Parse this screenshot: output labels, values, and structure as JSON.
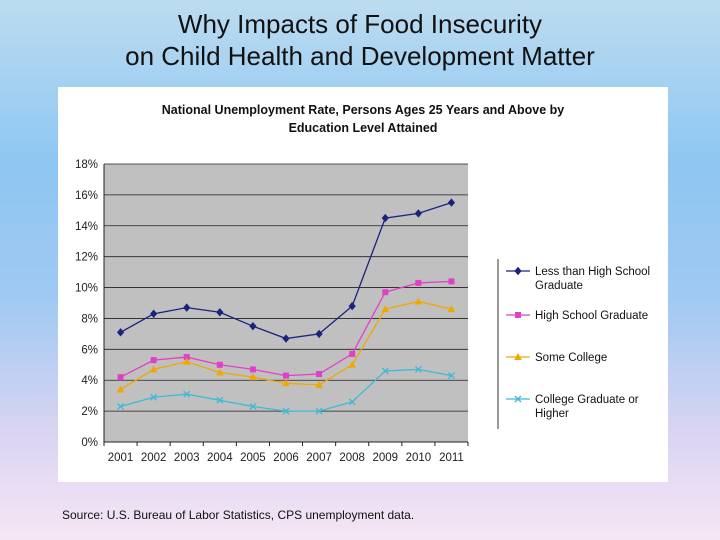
{
  "slide": {
    "title_line1": "Why Impacts of Food Insecurity",
    "title_line2": "on Child Health and Development Matter",
    "source": "Source: U.S. Bureau of Labor Statistics, CPS unemployment data."
  },
  "chart_data": {
    "type": "line",
    "title_line1": "National Unemployment Rate, Persons Ages 25 Years and Above by",
    "title_line2": "Education Level Attained",
    "xlabel": "",
    "ylabel": "",
    "ylim": [
      0,
      18
    ],
    "yticks": [
      0,
      2,
      4,
      6,
      8,
      10,
      12,
      14,
      16,
      18
    ],
    "ytick_labels": [
      "0%",
      "2%",
      "4%",
      "6%",
      "8%",
      "10%",
      "12%",
      "14%",
      "16%",
      "18%"
    ],
    "categories": [
      "2001",
      "2002",
      "2003",
      "2004",
      "2005",
      "2006",
      "2007",
      "2008",
      "2009",
      "2010",
      "2011"
    ],
    "grid": true,
    "legend_position": "right",
    "series": [
      {
        "name": "Less than High School Graduate",
        "legend_lines": [
          "Less than High School",
          "Graduate"
        ],
        "color": "#1a237e",
        "marker": "diamond",
        "values": [
          7.1,
          8.3,
          8.7,
          8.4,
          7.5,
          6.7,
          7.0,
          8.8,
          14.5,
          14.8,
          15.5
        ]
      },
      {
        "name": "High School Graduate",
        "legend_lines": [
          "High School Graduate"
        ],
        "color": "#e040c8",
        "marker": "square",
        "values": [
          4.2,
          5.3,
          5.5,
          5.0,
          4.7,
          4.3,
          4.4,
          5.7,
          9.7,
          10.3,
          10.4
        ]
      },
      {
        "name": "Some College",
        "legend_lines": [
          "Some College"
        ],
        "color": "#f0a800",
        "marker": "triangle",
        "values": [
          3.4,
          4.7,
          5.2,
          4.5,
          4.2,
          3.8,
          3.7,
          5.0,
          8.6,
          9.1,
          8.6
        ]
      },
      {
        "name": "College Graduate or Higher",
        "legend_lines": [
          "College Graduate or",
          "Higher"
        ],
        "color": "#40b8d8",
        "marker": "x",
        "values": [
          2.3,
          2.9,
          3.1,
          2.7,
          2.3,
          2.0,
          2.0,
          2.6,
          4.6,
          4.7,
          4.3
        ]
      }
    ]
  }
}
